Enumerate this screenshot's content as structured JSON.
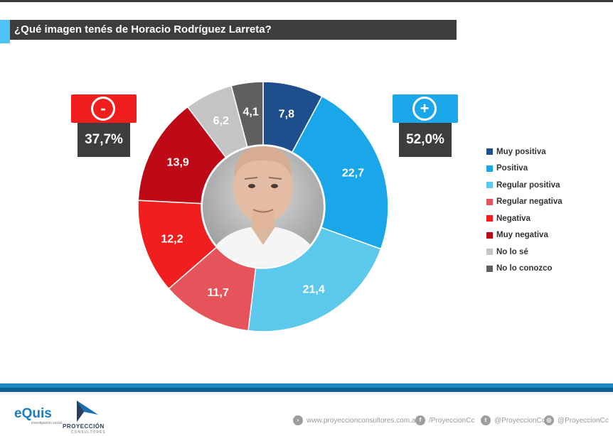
{
  "header": {
    "title": "¿Qué imagen tenés de Horacio Rodríguez Larreta?"
  },
  "negative_box": {
    "sign": "-",
    "total": "37,7%",
    "color": "#f01e1e"
  },
  "positive_box": {
    "sign": "+",
    "total": "52,0%",
    "color": "#19a7ea"
  },
  "center_photo": {
    "icon": "portrait-photo"
  },
  "chart_data": {
    "type": "pie",
    "style": "donut",
    "title": "¿Qué imagen tenés de Horacio Rodríguez Larreta?",
    "legend_position": "right",
    "series": [
      {
        "name": "Muy positiva",
        "value": 7.8,
        "label": "7,8",
        "color": "#1f4e8c"
      },
      {
        "name": "Positiva",
        "value": 22.7,
        "label": "22,7",
        "color": "#19a7ea"
      },
      {
        "name": "Regular positiva",
        "value": 21.4,
        "label": "21,4",
        "color": "#5bc8ec"
      },
      {
        "name": "Regular negativa",
        "value": 11.7,
        "label": "11,7",
        "color": "#e5545a"
      },
      {
        "name": "Negativa",
        "value": 12.2,
        "label": "12,2",
        "color": "#f01e1e"
      },
      {
        "name": "Muy negativa",
        "value": 13.9,
        "label": "13,9",
        "color": "#bd0a16"
      },
      {
        "name": "No lo sé",
        "value": 6.2,
        "label": "6,2",
        "color": "#c4c4c4"
      },
      {
        "name": "No lo conozco",
        "value": 4.1,
        "label": "4,1",
        "color": "#5f5f5f"
      }
    ]
  },
  "footer": {
    "logo_equis": "eQuis",
    "logo_equis_sub": "investigación social",
    "logo_proyeccion": "PROYECCIÓN",
    "logo_proyeccion_sub": "CONSULTORES",
    "links": [
      {
        "icon": "globe-icon",
        "text": "www.proyeccionconsultores.com.ar"
      },
      {
        "icon": "facebook-icon",
        "text": "/ProyeccionCc"
      },
      {
        "icon": "twitter-icon",
        "text": "@ProyeccionCc"
      },
      {
        "icon": "instagram-icon",
        "text": "@ProyeccionCc"
      }
    ]
  }
}
